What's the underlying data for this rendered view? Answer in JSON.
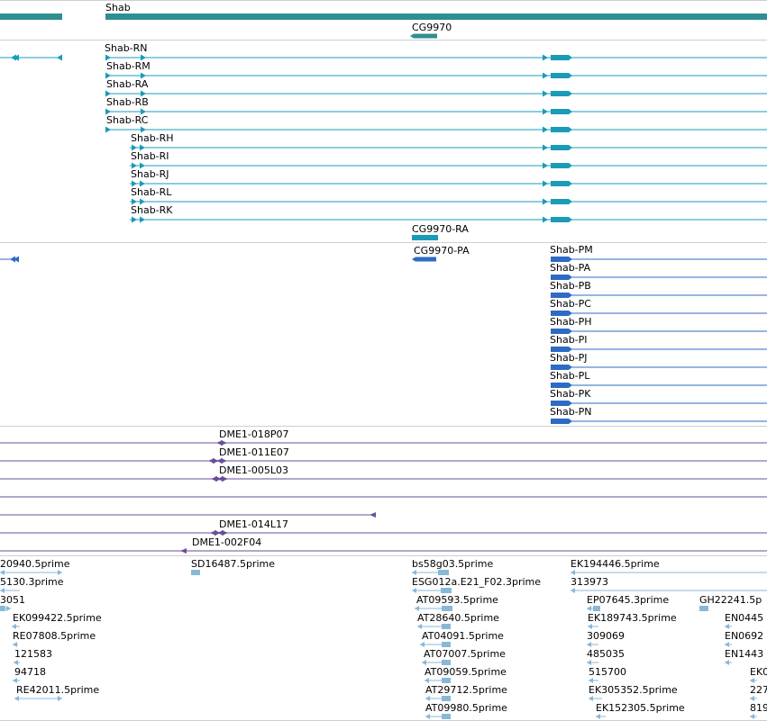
{
  "colors": {
    "gene": "#2f8e8f",
    "transcript": "#1a9bb8",
    "protein": "#2e6bc4",
    "clone": "#6a4e9a",
    "est": "#88b8d8",
    "divider": "#cfcfcf"
  },
  "gene_track": {
    "genes": [
      {
        "label": "Shab"
      },
      {
        "label": "CG9970"
      }
    ]
  },
  "transcript_track": {
    "transcripts": [
      {
        "label": "Shab-RN"
      },
      {
        "label": "Shab-RM"
      },
      {
        "label": "Shab-RA"
      },
      {
        "label": "Shab-RB"
      },
      {
        "label": "Shab-RC"
      },
      {
        "label": "Shab-RH"
      },
      {
        "label": "Shab-RI"
      },
      {
        "label": "Shab-RJ"
      },
      {
        "label": "Shab-RL"
      },
      {
        "label": "Shab-RK"
      },
      {
        "label": "CG9970-RA"
      }
    ]
  },
  "protein_track": {
    "proteins": [
      {
        "label": "CG9970-PA"
      },
      {
        "label": "Shab-PM"
      },
      {
        "label": "Shab-PA"
      },
      {
        "label": "Shab-PB"
      },
      {
        "label": "Shab-PC"
      },
      {
        "label": "Shab-PH"
      },
      {
        "label": "Shab-PI"
      },
      {
        "label": "Shab-PJ"
      },
      {
        "label": "Shab-PL"
      },
      {
        "label": "Shab-PK"
      },
      {
        "label": "Shab-PN"
      }
    ]
  },
  "clone_track": {
    "clones": [
      {
        "label": "DME1-018P07"
      },
      {
        "label": "DME1-011E07"
      },
      {
        "label": "DME1-005L03"
      },
      {
        "label": "DME1-014L17"
      },
      {
        "label": "DME1-002F04"
      }
    ]
  },
  "est_track": {
    "ests": [
      {
        "label": "20940.5prime"
      },
      {
        "label": "5130.3prime"
      },
      {
        "label": "3051"
      },
      {
        "label": "EK099422.5prime"
      },
      {
        "label": "RE07808.5prime"
      },
      {
        "label": "121583"
      },
      {
        "label": "94718"
      },
      {
        "label": "RE42011.5prime"
      },
      {
        "label": "SD16487.5prime"
      },
      {
        "label": "bs58g03.5prime"
      },
      {
        "label": "ESG012a.E21_F02.3prime"
      },
      {
        "label": "AT09593.5prime"
      },
      {
        "label": "AT28640.5prime"
      },
      {
        "label": "AT04091.5prime"
      },
      {
        "label": "AT07007.5prime"
      },
      {
        "label": "AT09059.5prime"
      },
      {
        "label": "AT29712.5prime"
      },
      {
        "label": "AT09980.5prime"
      },
      {
        "label": "EK194446.5prime"
      },
      {
        "label": "313973"
      },
      {
        "label": "EP07645.3prime"
      },
      {
        "label": "EK189743.5prime"
      },
      {
        "label": "309069"
      },
      {
        "label": "485035"
      },
      {
        "label": "515700"
      },
      {
        "label": "EK305352.5prime"
      },
      {
        "label": "EK152305.5prime"
      },
      {
        "label": "GH22241.5p"
      },
      {
        "label": "EN0445"
      },
      {
        "label": "EN0692"
      },
      {
        "label": "EN1443"
      },
      {
        "label": "EK0"
      },
      {
        "label": "227"
      },
      {
        "label": "819"
      }
    ]
  }
}
